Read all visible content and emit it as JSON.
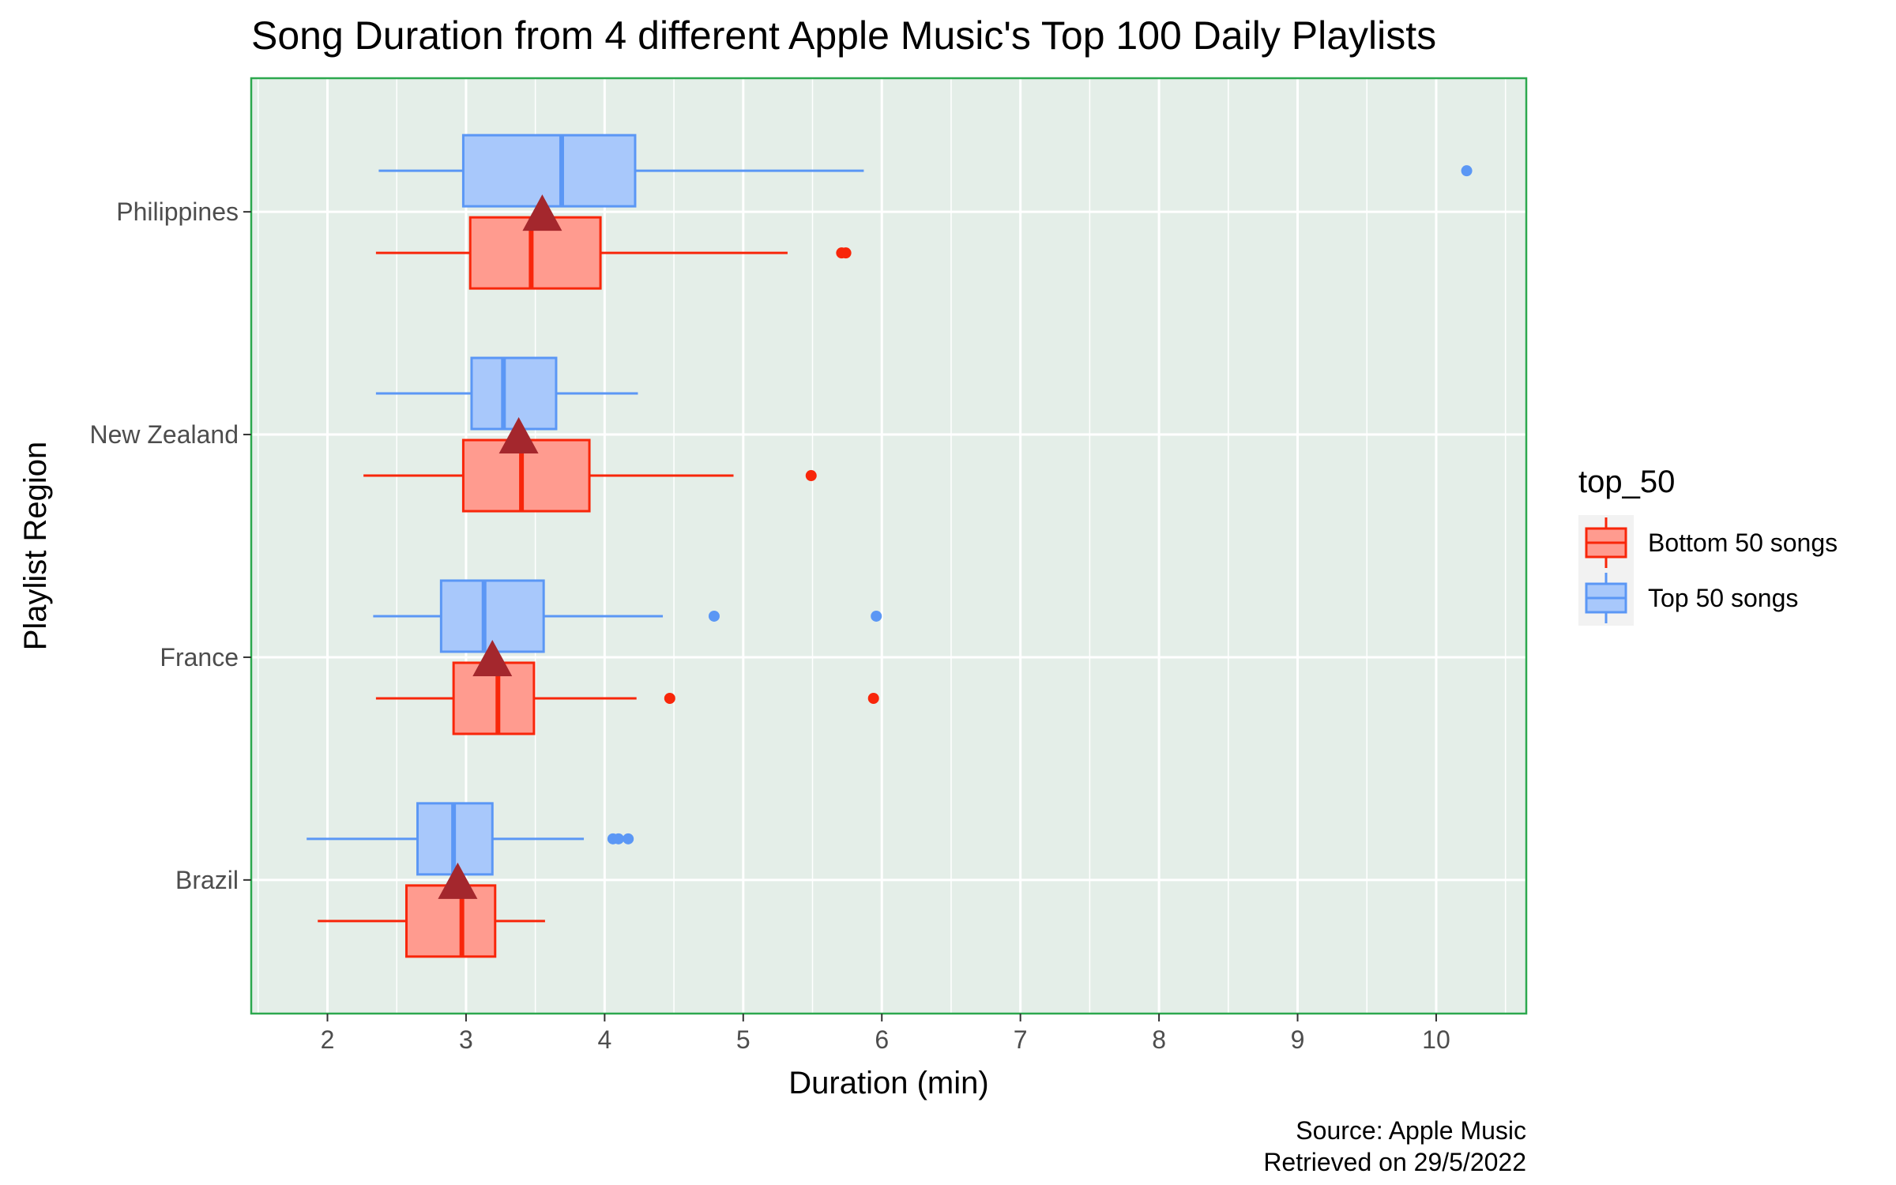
{
  "chart_data": {
    "type": "boxplot",
    "title": "Song Duration from 4 different Apple Music's Top 100 Daily Playlists",
    "xlabel": "Duration (min)",
    "ylabel": "Playlist Region",
    "xlim": [
      1.45,
      10.65
    ],
    "x_ticks": [
      "2",
      "3",
      "4",
      "5",
      "6",
      "7",
      "8",
      "9",
      "10"
    ],
    "categories": [
      "Brazil",
      "France",
      "New Zealand",
      "Philippines"
    ],
    "grid": true,
    "legend": {
      "title": "top_50",
      "position": "right",
      "entries": [
        "Bottom 50 songs",
        "Top 50 songs"
      ]
    },
    "caption": [
      "Source: Apple Music",
      "Retrieved on 29/5/2022"
    ],
    "series": [
      {
        "name": "Bottom 50 songs",
        "color": "#f8260a",
        "fill": "#ff9b8f",
        "boxes": [
          {
            "category": "Brazil",
            "whisker_low": 1.93,
            "q1": 2.57,
            "median": 2.97,
            "q3": 3.21,
            "whisker_high": 3.57,
            "outliers": []
          },
          {
            "category": "France",
            "whisker_low": 2.35,
            "q1": 2.91,
            "median": 3.23,
            "q3": 3.49,
            "whisker_high": 4.23,
            "outliers": [
              4.47,
              5.94
            ]
          },
          {
            "category": "New Zealand",
            "whisker_low": 2.26,
            "q1": 2.98,
            "median": 3.4,
            "q3": 3.89,
            "whisker_high": 4.93,
            "outliers": [
              5.49
            ]
          },
          {
            "category": "Philippines",
            "whisker_low": 2.35,
            "q1": 3.03,
            "median": 3.47,
            "q3": 3.97,
            "whisker_high": 5.32,
            "outliers": [
              5.71,
              5.74
            ]
          }
        ]
      },
      {
        "name": "Top 50 songs",
        "color": "#5b97f5",
        "fill": "#a8c8fb",
        "boxes": [
          {
            "category": "Brazil",
            "whisker_low": 1.85,
            "q1": 2.65,
            "median": 2.91,
            "q3": 3.19,
            "whisker_high": 3.85,
            "outliers": [
              4.06,
              4.1,
              4.17
            ]
          },
          {
            "category": "France",
            "whisker_low": 2.33,
            "q1": 2.82,
            "median": 3.13,
            "q3": 3.56,
            "whisker_high": 4.42,
            "outliers": [
              4.79,
              5.96
            ]
          },
          {
            "category": "New Zealand",
            "whisker_low": 2.35,
            "q1": 3.04,
            "median": 3.27,
            "q3": 3.65,
            "whisker_high": 4.24,
            "outliers": []
          },
          {
            "category": "Philippines",
            "whisker_low": 2.37,
            "q1": 2.98,
            "median": 3.69,
            "q3": 4.22,
            "whisker_high": 5.87,
            "outliers": [
              10.22
            ]
          }
        ]
      }
    ],
    "means": [
      {
        "category": "Brazil",
        "value": 2.94
      },
      {
        "category": "France",
        "value": 3.19
      },
      {
        "category": "New Zealand",
        "value": 3.38
      },
      {
        "category": "Philippines",
        "value": 3.55
      }
    ],
    "mean_marker_color": "#a4272d",
    "panel_background": "#e4eee8",
    "panel_border_color": "#2ca84e"
  }
}
